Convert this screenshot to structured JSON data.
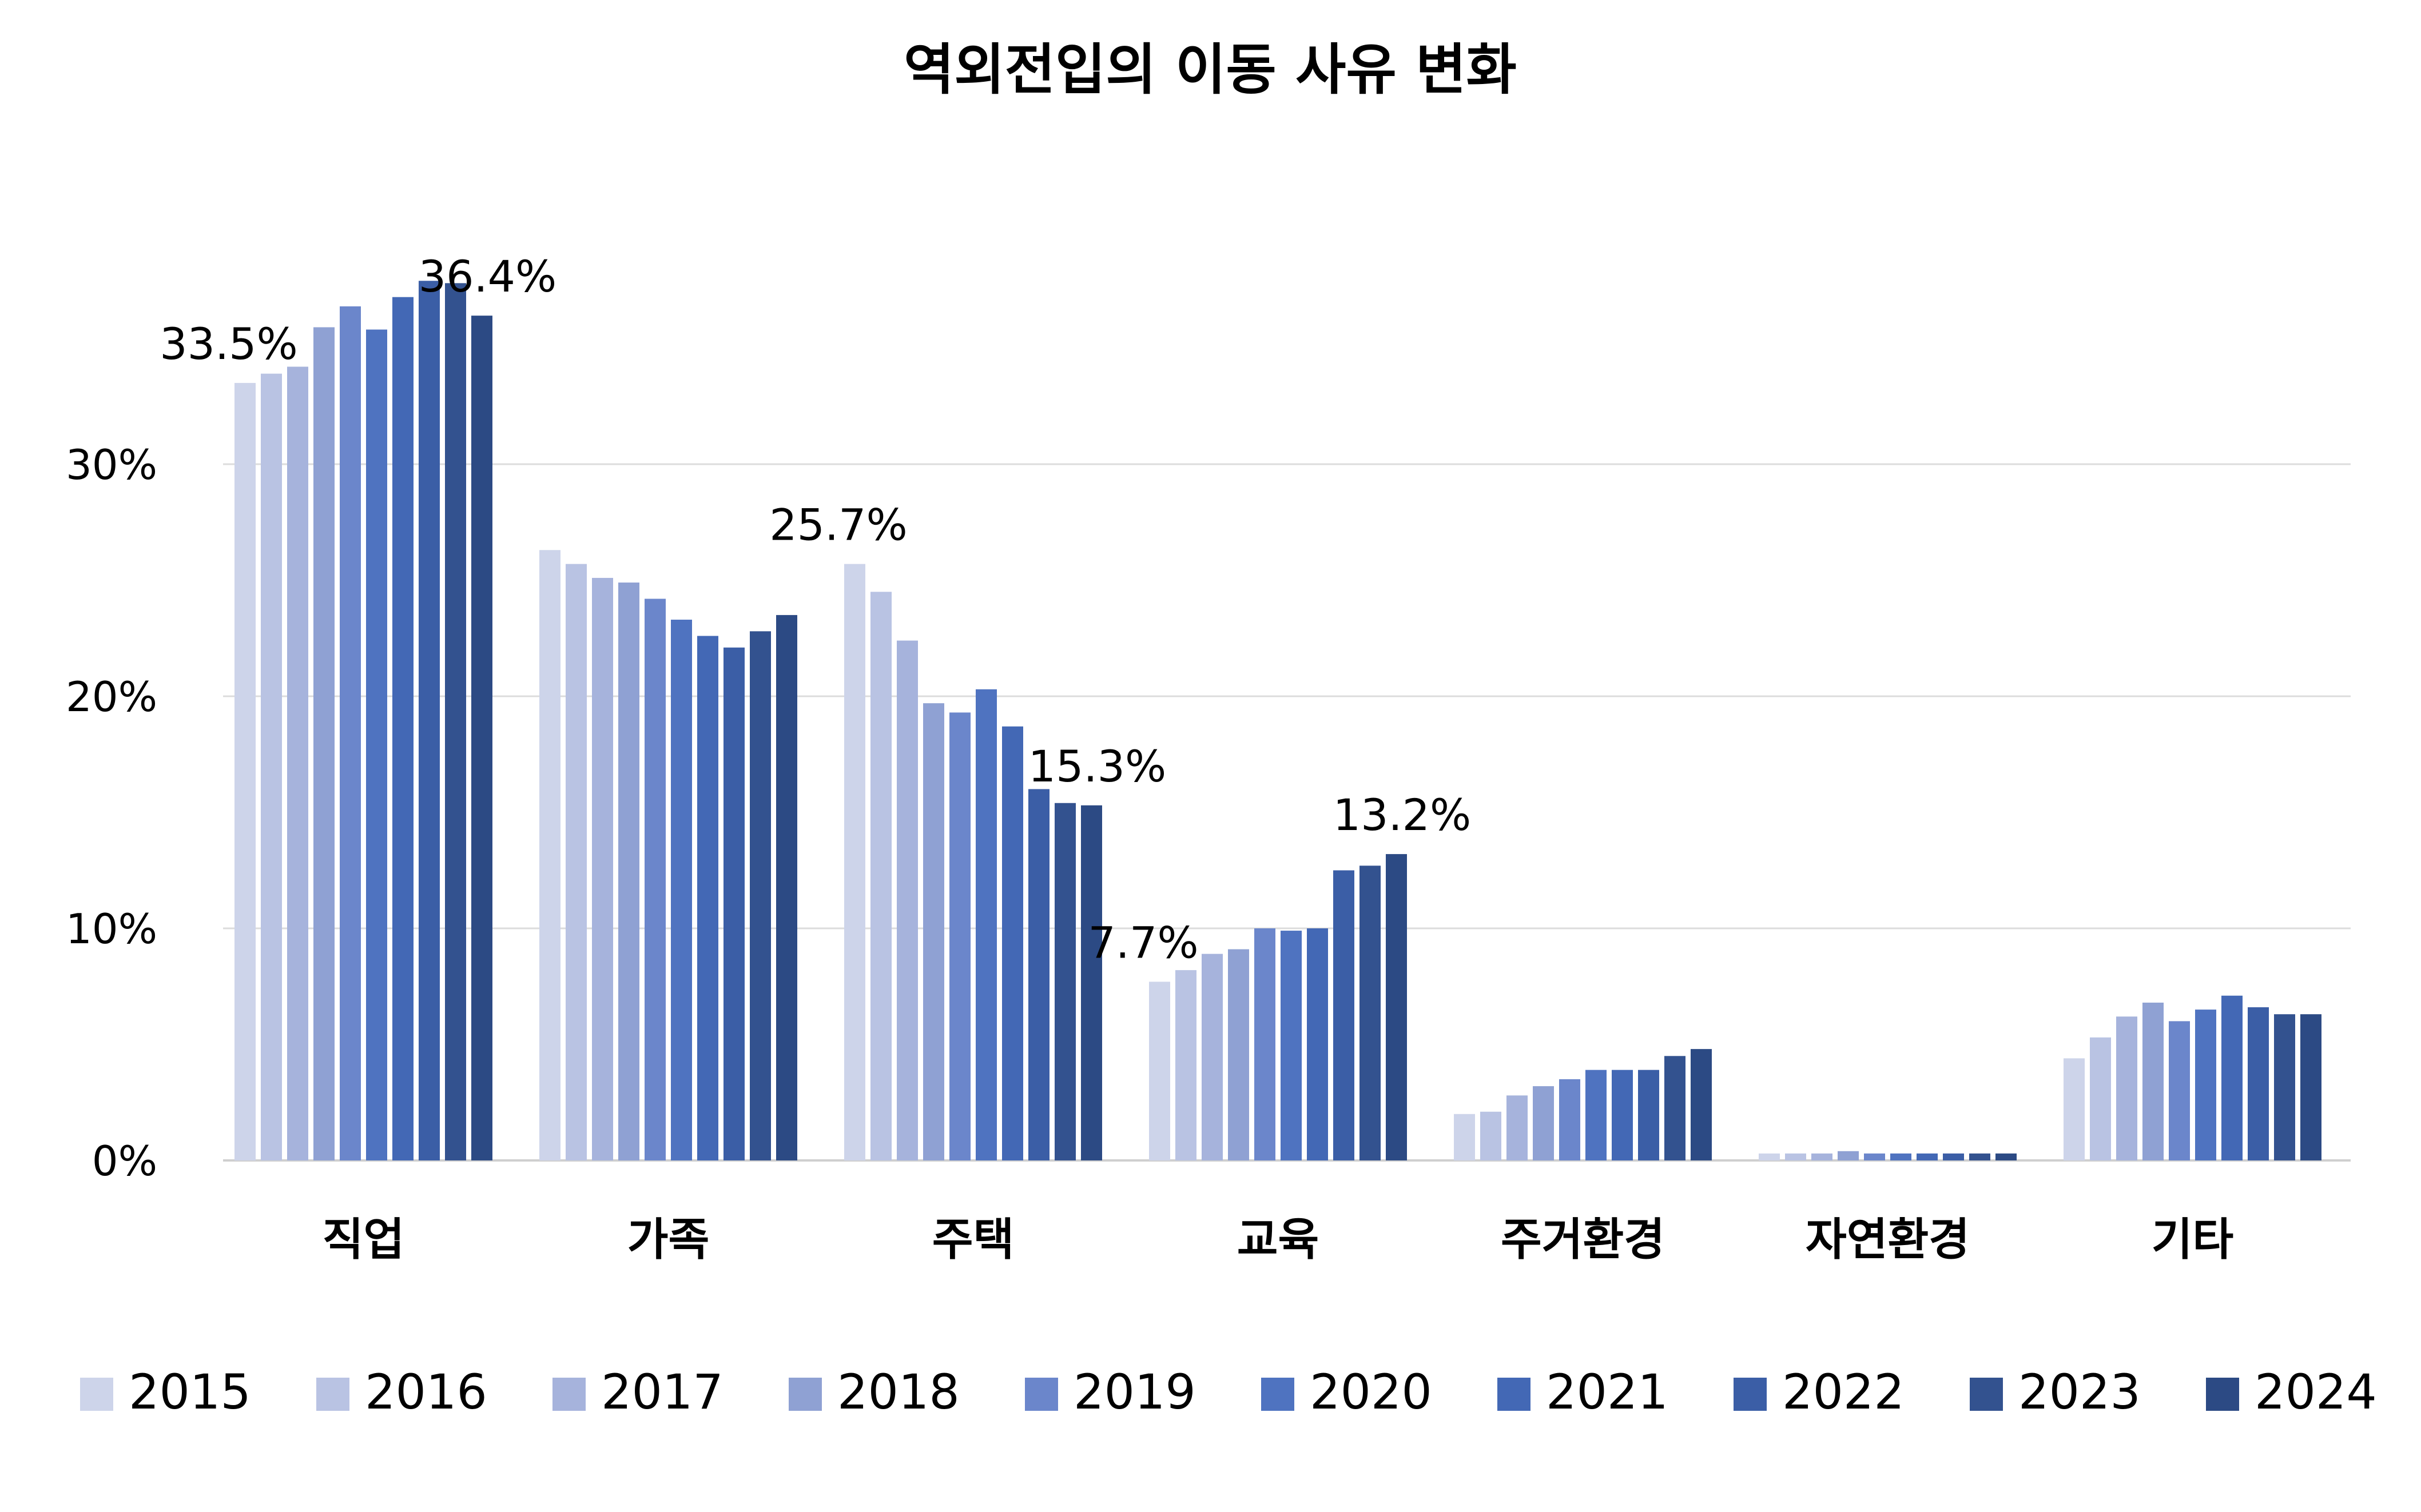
{
  "chart_data": {
    "type": "bar",
    "title": "역외전입의 이동 사유 변화",
    "xlabel": "",
    "ylabel": "",
    "ylim": [
      0,
      40
    ],
    "yticks": [
      {
        "value": 0,
        "label": "0%"
      },
      {
        "value": 10,
        "label": "10%"
      },
      {
        "value": 20,
        "label": "20%"
      },
      {
        "value": 30,
        "label": "30%"
      }
    ],
    "grid": true,
    "legend_position": "bottom",
    "categories": [
      "직업",
      "가족",
      "주택",
      "교육",
      "주거환경",
      "자연환경",
      "기타"
    ],
    "series": [
      {
        "name": "2015",
        "color": "#cdd4ea",
        "values": [
          33.5,
          26.3,
          25.7,
          7.7,
          2.0,
          0.3,
          4.4
        ]
      },
      {
        "name": "2016",
        "color": "#b9c3e3",
        "values": [
          33.9,
          25.7,
          24.5,
          8.2,
          2.1,
          0.3,
          5.3
        ]
      },
      {
        "name": "2017",
        "color": "#a6b3dc",
        "values": [
          34.2,
          25.1,
          22.4,
          8.9,
          2.8,
          0.3,
          6.2
        ]
      },
      {
        "name": "2018",
        "color": "#8fa1d3",
        "values": [
          35.9,
          24.9,
          19.7,
          9.1,
          3.2,
          0.4,
          6.8
        ]
      },
      {
        "name": "2019",
        "color": "#6b86cb",
        "values": [
          36.8,
          24.2,
          19.3,
          10.0,
          3.5,
          0.3,
          6.0
        ]
      },
      {
        "name": "2020",
        "color": "#4f73c0",
        "values": [
          35.8,
          23.3,
          20.3,
          9.9,
          3.9,
          0.3,
          6.5
        ]
      },
      {
        "name": "2021",
        "color": "#4368b5",
        "values": [
          37.2,
          22.6,
          18.7,
          10.0,
          3.9,
          0.3,
          7.1
        ]
      },
      {
        "name": "2022",
        "color": "#3b5ea6",
        "values": [
          37.9,
          22.1,
          16.0,
          12.5,
          3.9,
          0.3,
          6.6
        ]
      },
      {
        "name": "2023",
        "color": "#33528f",
        "values": [
          37.8,
          22.8,
          15.4,
          12.7,
          4.5,
          0.3,
          6.3
        ]
      },
      {
        "name": "2024",
        "color": "#2c4a84",
        "values": [
          36.4,
          23.5,
          15.3,
          13.2,
          4.8,
          0.3,
          6.3
        ]
      }
    ],
    "annotations": [
      {
        "category": "직업",
        "series": "2015",
        "text": "33.5%"
      },
      {
        "category": "직업",
        "series": "2024",
        "text": "36.4%"
      },
      {
        "category": "주택",
        "series": "2015",
        "text": "25.7%"
      },
      {
        "category": "주택",
        "series": "2024",
        "text": "15.3%"
      },
      {
        "category": "교육",
        "series": "2015",
        "text": "7.7%"
      },
      {
        "category": "교육",
        "series": "2024",
        "text": "13.2%"
      }
    ]
  }
}
